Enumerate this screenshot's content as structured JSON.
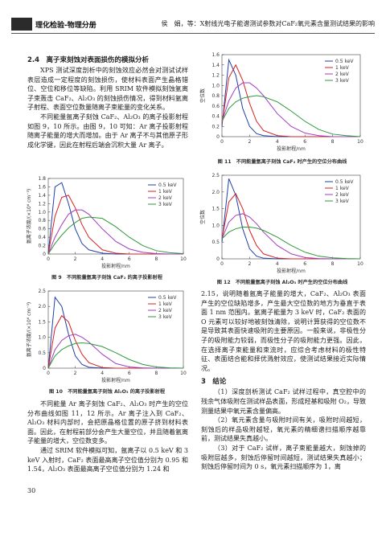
{
  "header": {
    "journal": "理化检验-物理分册",
    "running_title": "侯　娟，等：X射线光电子能谱测试参数对CaF₂氧元素含量测试结果的影响"
  },
  "section_2_4": {
    "heading": "2.4　离子束刻蚀对表面损伤的模拟分析",
    "paragraphs": [
      "XPS 测试深度剖析中的刻蚀效应必然会对测试试样表层造成一定程度的刻蚀损伤，使材料表面产生晶格错位、空位和移位等缺陷。利用 SRIM 软件模拟刻蚀氩离子束轰击 CaF₂、Al₂O₃ 的刻蚀损伤情况，得到材料氩离子射程、表面空位数量随离子束能量的变化关系。",
      "不同能量氩离子刻蚀 CaF₂、Al₂O₃ 的离子投影射程如图 9，10 所示。由图 9，10 可知：Ar 离子投影射程随离子能量的增大而增加。由于 Ar 离子不与其他原子形成化学键，因此在射程后端会沉积大量 Ar 离子。",
      "不同能量 Ar 离子刻蚀 CaF₂、Al₂O₃ 时产生的空位分布曲线如图 11，12 所示。Ar 离子注入到 CaF₂、Al₂O₃ 材料内部时，会把原晶格位置的原子挤到材料表面。因此，在射程前部分会产生大量空位，并且随着氩离子能量的增大，空位数变多。",
      "通过 SRIM 软件模拟可知，氩离子以 0.5 keV 和 3 keV 入射时，CaF₂ 表面最高离子空位值分别为 0.95 和 1.54，Al₂O₃ 表面最高离子空位值分别为 1.24 和",
      "2.15，说明随着氩离子能量的增大，CaF₂、Al₂O₃ 表面产生的空位缺陷增多，产生最大空位数的地方为垂直于表面 1 nm 范围内。氩离子能量为 3 keV 时，CaF₂ 表面的 O 元素可以较好地被刻蚀清除，说明计算获得的空位数不是导致其表面快速吸附的主要原因。一般来说，非极性分子的吸附能力较弱，而极性分子的吸附能力更强。因此，在选择离子束能量和束流时，应综合考虑材料的极性特征、表面结合能和择优溅射效应，使测试结果接近实际情况。"
    ]
  },
  "section_3": {
    "heading": "3　结论",
    "paragraphs": [
      "（1）深度剖析测试 CaF₂ 试样过程中，真空腔中的残余气体吸附在测试样品表面，形成羟基和吸附 O₂，导致测量结果中氧元素含量偏高。",
      "（2）氧元素含量与吸附时间有关，吸附时间越短，刻蚀后的样品吸附越轻，氧元素的精细谱扫描顺序越靠前，测试结果失真越小。",
      "（3）对于 CaF₂ 试样，离子束能量越大，刻蚀掉的吸附层越多，刻蚀后停留时间越短，测试结果失真越小；刻蚀后停留时间为 0 s，氧元素扫描顺序为 1，离"
    ]
  },
  "page_number": "30",
  "chart_data": [
    {
      "type": "line",
      "title": "图 9　不同能量氩离子刻蚀 CaF₂ 的离子投影射程",
      "x_label": "投影射程/nm",
      "y_label": "氩离子浓度/(×10⁶ cm⁻³)",
      "x": [
        0,
        0.5,
        1,
        1.5,
        2,
        2.5,
        3,
        4,
        5,
        6,
        7,
        8,
        9,
        10
      ],
      "xlim": [
        0,
        10
      ],
      "xticks": [
        0,
        2,
        4,
        6,
        8,
        10
      ],
      "ylim": [
        0,
        1.8
      ],
      "yticks": [
        0,
        0.2,
        0.4,
        0.6,
        0.8,
        {
          "value": 1,
          "label": "1.0"
        },
        1.2,
        1.4,
        1.6,
        1.8
      ],
      "series": [
        {
          "name": "0.5 keV",
          "color": "#1f3fa8",
          "values": [
            0,
            1.6,
            1.7,
            1.2,
            0.6,
            0.25,
            0.1,
            0.02,
            0,
            0,
            0,
            0,
            0,
            0
          ]
        },
        {
          "name": "1 keV",
          "color": "#d62020",
          "values": [
            0,
            0.9,
            1.35,
            1.4,
            1.1,
            0.7,
            0.4,
            0.1,
            0.02,
            0,
            0,
            0,
            0,
            0
          ]
        },
        {
          "name": "2 keV",
          "color": "#a23cbf",
          "values": [
            0,
            0.4,
            0.7,
            0.95,
            1.05,
            1.05,
            0.95,
            0.6,
            0.3,
            0.12,
            0.04,
            0.01,
            0,
            0
          ]
        },
        {
          "name": "3 keV",
          "color": "#2e9a3a",
          "values": [
            0,
            0.25,
            0.45,
            0.62,
            0.75,
            0.85,
            0.88,
            0.85,
            0.65,
            0.4,
            0.2,
            0.08,
            0.03,
            0.01
          ]
        }
      ]
    },
    {
      "type": "line",
      "title": "图 10　不同能量氩离子刻蚀 Al₂O₃ 的离子投影射程",
      "x_label": "投影射程/nm",
      "y_label": "氩离子浓度/(×10⁶ cm⁻³)",
      "x": [
        0,
        0.5,
        1,
        1.5,
        2,
        2.5,
        3,
        4,
        5,
        6,
        7,
        8,
        9,
        10
      ],
      "xlim": [
        0,
        10
      ],
      "xticks": [
        0,
        2,
        4,
        6,
        8,
        10
      ],
      "ylim": [
        0,
        2.5
      ],
      "yticks": [
        0,
        0.5,
        {
          "value": 1,
          "label": "1.0"
        },
        1.5,
        {
          "value": 2,
          "label": "2.0"
        },
        2.5
      ],
      "series": [
        {
          "name": "0.5 keV",
          "color": "#1f3fa8",
          "values": [
            0,
            2.3,
            2.0,
            1.1,
            0.4,
            0.12,
            0.03,
            0,
            0,
            0,
            0,
            0,
            0,
            0
          ]
        },
        {
          "name": "1 keV",
          "color": "#d62020",
          "values": [
            0,
            1.3,
            1.7,
            1.5,
            0.9,
            0.45,
            0.18,
            0.02,
            0,
            0,
            0,
            0,
            0,
            0
          ]
        },
        {
          "name": "2 keV",
          "color": "#a23cbf",
          "values": [
            0,
            0.6,
            0.9,
            1.05,
            1.1,
            1.0,
            0.85,
            0.45,
            0.15,
            0.04,
            0.01,
            0,
            0,
            0
          ]
        },
        {
          "name": "3 keV",
          "color": "#2e9a3a",
          "values": [
            0,
            0.4,
            0.6,
            0.72,
            0.8,
            0.82,
            0.8,
            0.7,
            0.5,
            0.28,
            0.12,
            0.04,
            0.01,
            0
          ]
        }
      ]
    },
    {
      "type": "line",
      "title": "图 11　不同能量氩离子刻蚀 CaF₂ 时产生的空位分布曲线",
      "x_label": "投影射程/nm",
      "y_label": "空位数",
      "x": [
        0,
        0.5,
        1,
        1.5,
        2,
        2.5,
        3,
        4,
        5,
        6,
        7,
        8,
        9,
        10
      ],
      "xlim": [
        0,
        10
      ],
      "xticks": [
        0,
        2,
        4,
        6,
        8,
        10
      ],
      "ylim": [
        0,
        1.6
      ],
      "yticks": [
        0,
        0.2,
        0.4,
        0.6,
        0.8,
        {
          "value": 1,
          "label": "1.0"
        },
        1.2,
        1.4,
        1.6
      ],
      "series": [
        {
          "name": "0.5 keV",
          "color": "#1f3fa8",
          "values": [
            0.2,
            1.5,
            1.2,
            0.55,
            0.2,
            0.06,
            0.02,
            0,
            0,
            0,
            0,
            0,
            0,
            0
          ]
        },
        {
          "name": "1 keV",
          "color": "#d62020",
          "values": [
            0.25,
            1.15,
            1.4,
            1.1,
            0.65,
            0.3,
            0.12,
            0.02,
            0,
            0,
            0,
            0,
            0,
            0
          ]
        },
        {
          "name": "2 keV",
          "color": "#a23cbf",
          "values": [
            0.3,
            0.7,
            0.95,
            1.05,
            1.05,
            0.95,
            0.8,
            0.45,
            0.2,
            0.07,
            0.02,
            0,
            0,
            0
          ]
        },
        {
          "name": "3 keV",
          "color": "#2e9a3a",
          "values": [
            0.3,
            0.55,
            0.68,
            0.75,
            0.78,
            0.8,
            0.78,
            0.68,
            0.5,
            0.3,
            0.14,
            0.05,
            0.02,
            0
          ]
        }
      ]
    },
    {
      "type": "line",
      "title": "图 12　不同能量氩离子刻蚀 Al₂O₃ 时产生的空位分布曲线",
      "x_label": "投影射程/nm",
      "y_label": "空位数",
      "x": [
        0,
        0.5,
        1,
        1.5,
        2,
        2.5,
        3,
        4,
        5,
        6,
        7,
        8,
        9,
        10
      ],
      "xlim": [
        0,
        10
      ],
      "xticks": [
        0,
        2,
        4,
        6,
        8,
        10
      ],
      "ylim": [
        0,
        2.5
      ],
      "yticks": [
        0,
        0.5,
        {
          "value": 1,
          "label": "1.0"
        },
        1.5,
        {
          "value": 2,
          "label": "2.0"
        },
        2.5
      ],
      "series": [
        {
          "name": "0.5 keV",
          "color": "#1f3fa8",
          "values": [
            0.5,
            2.4,
            1.9,
            0.9,
            0.3,
            0.08,
            0.02,
            0,
            0,
            0,
            0,
            0,
            0,
            0
          ]
        },
        {
          "name": "1 keV",
          "color": "#d62020",
          "values": [
            0.6,
            1.7,
            1.95,
            1.5,
            0.85,
            0.4,
            0.15,
            0.02,
            0,
            0,
            0,
            0,
            0,
            0
          ]
        },
        {
          "name": "2 keV",
          "color": "#a23cbf",
          "values": [
            0.6,
            1.1,
            1.3,
            1.35,
            1.25,
            1.05,
            0.8,
            0.4,
            0.15,
            0.04,
            0.01,
            0,
            0,
            0
          ]
        },
        {
          "name": "3 keV",
          "color": "#2e9a3a",
          "values": [
            0.6,
            0.8,
            0.9,
            0.95,
            0.95,
            0.92,
            0.85,
            0.65,
            0.4,
            0.2,
            0.08,
            0.03,
            0.01,
            0
          ]
        }
      ]
    }
  ]
}
